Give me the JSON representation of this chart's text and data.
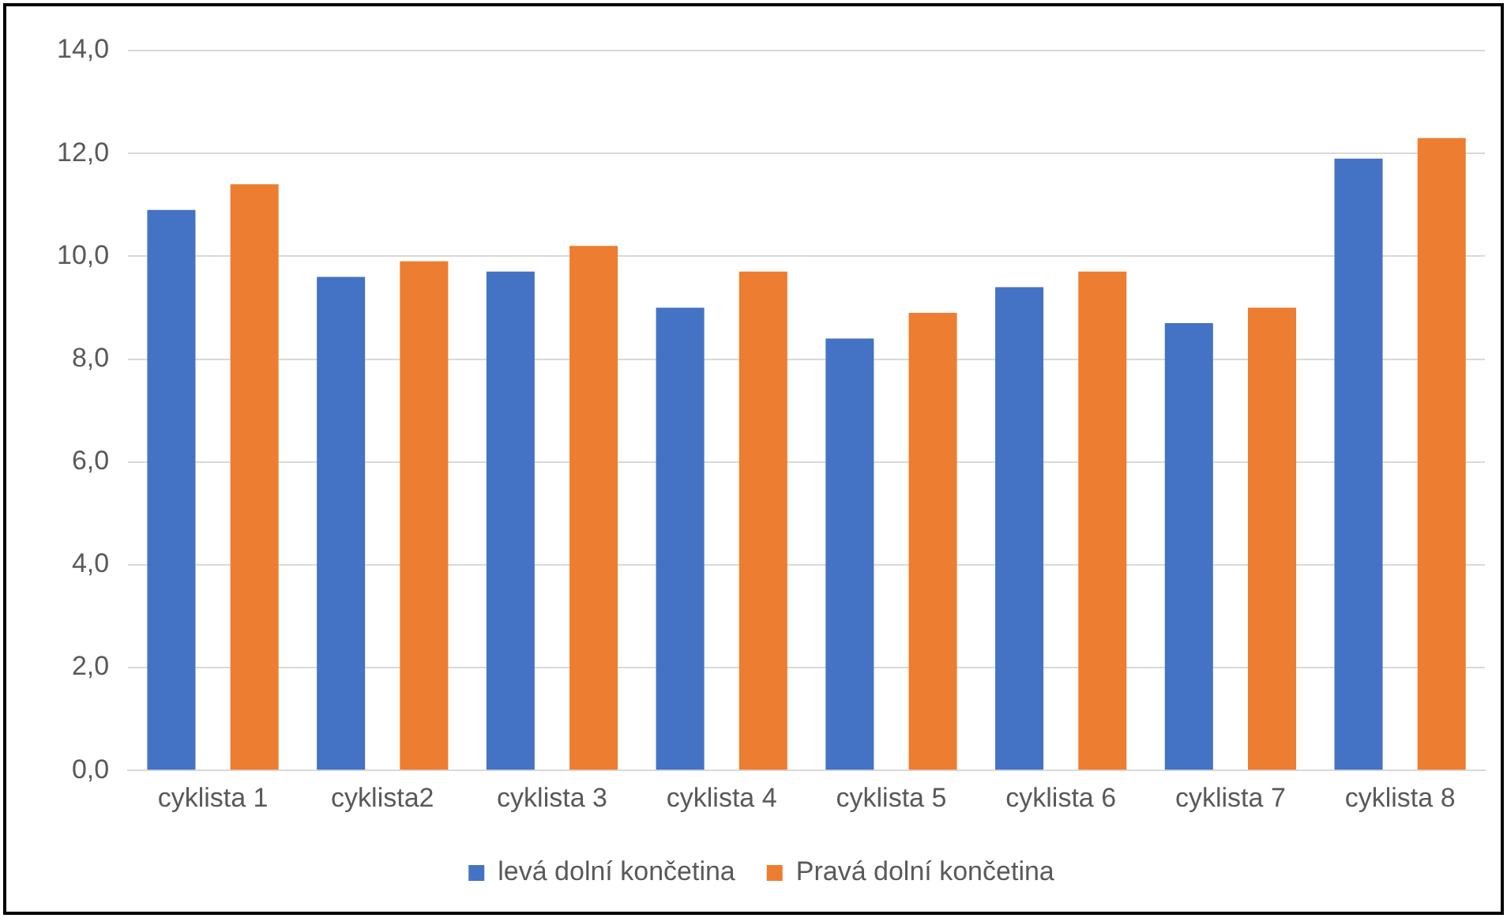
{
  "chart_data": {
    "type": "bar",
    "categories": [
      "cyklista 1",
      "cyklista2",
      "cyklista 3",
      "cyklista 4",
      "cyklista 5",
      "cyklista 6",
      "cyklista 7",
      "cyklista 8"
    ],
    "series": [
      {
        "name": "levá dolní končetina",
        "color": "#4472c4",
        "values": [
          10.9,
          9.6,
          9.7,
          9.0,
          8.4,
          9.4,
          8.7,
          11.9
        ]
      },
      {
        "name": "Pravá dolní končetina",
        "color": "#ed7d31",
        "values": [
          11.4,
          9.9,
          10.2,
          9.7,
          8.9,
          9.7,
          9.0,
          12.3
        ]
      }
    ],
    "ylim": [
      0,
      14
    ],
    "yticks": [
      {
        "value": 0,
        "label": "0,0"
      },
      {
        "value": 2,
        "label": "2,0"
      },
      {
        "value": 4,
        "label": "4,0"
      },
      {
        "value": 6,
        "label": "6,0"
      },
      {
        "value": 8,
        "label": "8,0"
      },
      {
        "value": 10,
        "label": "10,0"
      },
      {
        "value": 12,
        "label": "12,0"
      },
      {
        "value": 14,
        "label": "14,0"
      }
    ],
    "grid": "y",
    "legend": "bottom"
  }
}
